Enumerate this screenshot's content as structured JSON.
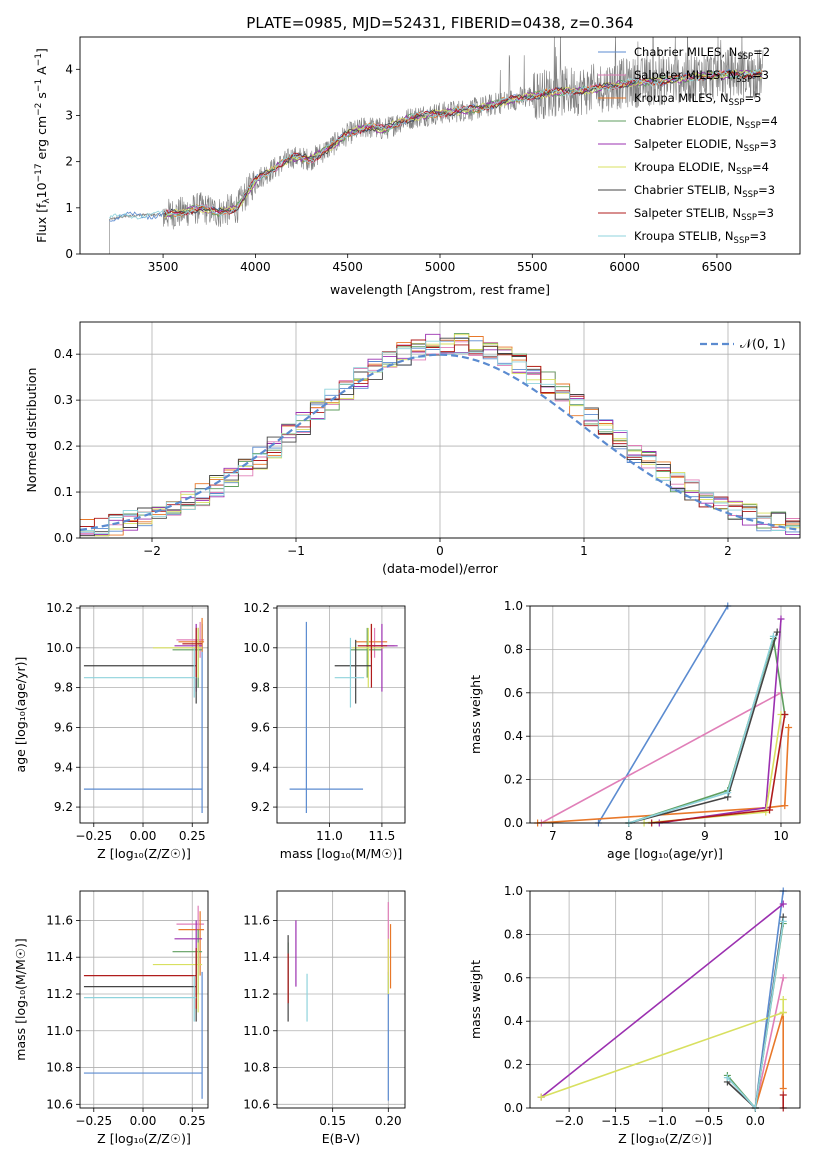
{
  "figure": {
    "title": "PLATE=0985, MJD=52431, FIBERID=0438, z=0.364"
  },
  "models": [
    {
      "key": "cm",
      "label": "Chabrier MILES, N",
      "sub": "SSP",
      "tail": "=2",
      "color": "#5b8bd0"
    },
    {
      "key": "sm",
      "label": "Salpeter MILES, N",
      "sub": "SSP",
      "tail": "=3",
      "color": "#e07fb8"
    },
    {
      "key": "km",
      "label": "Kroupa MILES, N",
      "sub": "SSP",
      "tail": "=5",
      "color": "#e8782a"
    },
    {
      "key": "ce",
      "label": "Chabrier ELODIE, N",
      "sub": "SSP",
      "tail": "=4",
      "color": "#5f9e5f"
    },
    {
      "key": "se",
      "label": "Salpeter ELODIE, N",
      "sub": "SSP",
      "tail": "=3",
      "color": "#9b30b0"
    },
    {
      "key": "ke",
      "label": "Kroupa ELODIE, N",
      "sub": "SSP",
      "tail": "=4",
      "color": "#d8e060"
    },
    {
      "key": "cs",
      "label": "Chabrier STELIB, N",
      "sub": "SSP",
      "tail": "=3",
      "color": "#444444"
    },
    {
      "key": "ss",
      "label": "Salpeter STELIB, N",
      "sub": "SSP",
      "tail": "=3",
      "color": "#b01c1c"
    },
    {
      "key": "ks",
      "label": "Kroupa STELIB, N",
      "sub": "SSP",
      "tail": "=3",
      "color": "#8fd3dc"
    }
  ],
  "colors": {
    "data": "#808080",
    "grid": "#b0b0b0",
    "normal": "#5b8bd0"
  },
  "chart_data": [
    {
      "id": "spectrum",
      "type": "line",
      "xlabel": "wavelength [Angstrom, rest frame]",
      "ylabel_main": "Flux [f",
      "ylabel_sub": "λ",
      "ylabel_rest": "10",
      "ylabel_exp1": "−17",
      "ylabel_mid": " erg cm",
      "ylabel_exp2": "−2",
      "ylabel_mid2": " s",
      "ylabel_exp3": "−1",
      "ylabel_end": " A",
      "ylabel_exp4": "−1",
      "ylabel_close": "]",
      "xlim": [
        3050,
        6950
      ],
      "ylim": [
        0,
        4.7
      ],
      "xticks": [
        "3500",
        "4000",
        "4500",
        "5000",
        "5500",
        "6000",
        "6500"
      ],
      "xtick_values": [
        3500,
        4000,
        4500,
        5000,
        5500,
        6000,
        6500
      ],
      "yticks": [
        "0",
        "1",
        "2",
        "3",
        "4"
      ],
      "ytick_values": [
        0,
        1,
        2,
        3,
        4
      ],
      "grid": false,
      "legend": "right",
      "continuum": {
        "x": [
          3210,
          3300,
          3400,
          3500,
          3600,
          3700,
          3800,
          3900,
          4000,
          4100,
          4200,
          4300,
          4400,
          4500,
          4600,
          4700,
          4800,
          4900,
          5000,
          5200,
          5400,
          5600,
          5800,
          6000,
          6200,
          6400,
          6600,
          6750
        ],
        "y": [
          0.75,
          0.82,
          0.85,
          0.85,
          0.9,
          1.0,
          0.9,
          1.0,
          1.6,
          1.85,
          2.1,
          2.05,
          2.3,
          2.6,
          2.75,
          2.7,
          2.9,
          3.0,
          3.05,
          3.15,
          3.35,
          3.5,
          3.55,
          3.7,
          3.75,
          3.85,
          3.9,
          3.9
        ]
      }
    },
    {
      "id": "residuals",
      "type": "histogram",
      "xlabel": "(data-model)/error",
      "ylabel": "Normed distribution",
      "xlim": [
        -2.5,
        2.5
      ],
      "ylim": [
        0,
        0.47
      ],
      "xticks": [
        "−2",
        "−1",
        "0",
        "1",
        "2"
      ],
      "xtick_values": [
        -2,
        -1,
        0,
        1,
        2
      ],
      "yticks": [
        "0.0",
        "0.1",
        "0.2",
        "0.3",
        "0.4"
      ],
      "ytick_values": [
        0,
        0.1,
        0.2,
        0.3,
        0.4
      ],
      "grid": true,
      "legend": "top-right",
      "legend_label": "𝒩(0, 1)"
    },
    {
      "id": "age_vs_Z",
      "type": "scatter",
      "xlabel": "Z [log₁₀(Z/Z☉)]",
      "ylabel": "age  [log₁₀(age/yr)]",
      "xlim": [
        -0.32,
        0.33
      ],
      "ylim": [
        9.12,
        10.21
      ],
      "xticks": [
        "−0.25",
        "0.00",
        "0.25"
      ],
      "xtick_values": [
        -0.25,
        0,
        0.25
      ],
      "yticks": [
        "9.2",
        "9.4",
        "9.6",
        "9.8",
        "10.0",
        "10.2"
      ],
      "ytick_values": [
        9.2,
        9.4,
        9.6,
        9.8,
        10.0,
        10.2
      ],
      "grid": true,
      "points": [
        {
          "m": "cm",
          "x": 0.3,
          "y": 9.29,
          "xlo": -0.3,
          "xhi": 0.3,
          "ylo": 9.17,
          "yhi": 10.12
        },
        {
          "m": "sm",
          "x": 0.29,
          "y": 10.04,
          "xlo": 0.17,
          "xhi": 0.31,
          "ylo": 9.95,
          "yhi": 10.13
        },
        {
          "m": "km",
          "x": 0.3,
          "y": 10.03,
          "xlo": 0.18,
          "xhi": 0.31,
          "ylo": 9.98,
          "yhi": 10.15
        },
        {
          "m": "ce",
          "x": 0.28,
          "y": 9.99,
          "xlo": 0.15,
          "xhi": 0.3,
          "ylo": 9.8,
          "yhi": 10.1
        },
        {
          "m": "se",
          "x": 0.27,
          "y": 10.01,
          "xlo": 0.16,
          "xhi": 0.3,
          "ylo": 9.78,
          "yhi": 10.12
        },
        {
          "m": "ke",
          "x": 0.28,
          "y": 10.0,
          "xlo": 0.05,
          "xhi": 0.3,
          "ylo": 9.85,
          "yhi": 10.1
        },
        {
          "m": "cs",
          "x": 0.27,
          "y": 9.91,
          "xlo": -0.3,
          "xhi": 0.27,
          "ylo": 9.72,
          "yhi": 10.04
        },
        {
          "m": "ss",
          "x": 0.27,
          "y": 10.02,
          "xlo": 0.2,
          "xhi": 0.3,
          "ylo": 9.85,
          "yhi": 10.1
        },
        {
          "m": "ks",
          "x": 0.26,
          "y": 9.85,
          "xlo": -0.3,
          "xhi": 0.27,
          "ylo": 9.75,
          "yhi": 10.0
        }
      ]
    },
    {
      "id": "age_vs_mass",
      "type": "scatter",
      "xlabel": "mass [log₁₀(M/M☉)]",
      "ylabel": "",
      "xlim": [
        10.5,
        11.72
      ],
      "ylim": [
        9.12,
        10.21
      ],
      "xticks": [
        "11.0",
        "11.5"
      ],
      "xtick_values": [
        11.0,
        11.5
      ],
      "yticks": [
        "9.2",
        "9.4",
        "9.6",
        "9.8",
        "10.0",
        "10.2"
      ],
      "ytick_values": [
        9.2,
        9.4,
        9.6,
        9.8,
        10.0,
        10.2
      ],
      "grid": true,
      "points": [
        {
          "m": "cm",
          "x": 10.78,
          "y": 9.29,
          "xlo": 10.62,
          "xhi": 11.32,
          "ylo": 9.17,
          "yhi": 10.13
        },
        {
          "m": "sm",
          "x": 11.43,
          "y": 10.01,
          "xlo": 11.27,
          "xhi": 11.62,
          "ylo": 9.95,
          "yhi": 10.1
        },
        {
          "m": "km",
          "x": 11.4,
          "y": 10.03,
          "xlo": 11.25,
          "xhi": 11.55,
          "ylo": 9.95,
          "yhi": 10.12
        },
        {
          "m": "ce",
          "x": 11.36,
          "y": 9.99,
          "xlo": 11.2,
          "xhi": 11.5,
          "ylo": 9.85,
          "yhi": 10.1
        },
        {
          "m": "se",
          "x": 11.5,
          "y": 10.01,
          "xlo": 11.35,
          "xhi": 11.65,
          "ylo": 9.78,
          "yhi": 10.12
        },
        {
          "m": "ke",
          "x": 11.37,
          "y": 10.0,
          "xlo": 11.22,
          "xhi": 11.52,
          "ylo": 9.8,
          "yhi": 10.1
        },
        {
          "m": "cs",
          "x": 11.25,
          "y": 9.91,
          "xlo": 11.05,
          "xhi": 11.4,
          "ylo": 9.72,
          "yhi": 10.04
        },
        {
          "m": "ss",
          "x": 11.4,
          "y": 10.01,
          "xlo": 11.27,
          "xhi": 11.55,
          "ylo": 9.8,
          "yhi": 10.12
        },
        {
          "m": "ks",
          "x": 11.2,
          "y": 9.85,
          "xlo": 11.05,
          "xhi": 11.33,
          "ylo": 9.7,
          "yhi": 10.05
        }
      ]
    },
    {
      "id": "mass_vs_Z",
      "type": "scatter",
      "xlabel": "Z [log₁₀(Z/Z☉)]",
      "ylabel": "mass [log₁₀(M/M☉)]",
      "xlim": [
        -0.32,
        0.33
      ],
      "ylim": [
        10.58,
        11.76
      ],
      "xticks": [
        "−0.25",
        "0.00",
        "0.25"
      ],
      "xtick_values": [
        -0.25,
        0,
        0.25
      ],
      "yticks": [
        "10.6",
        "10.8",
        "11.0",
        "11.2",
        "11.4",
        "11.6"
      ],
      "ytick_values": [
        10.6,
        10.8,
        11.0,
        11.2,
        11.4,
        11.6
      ],
      "grid": true,
      "points": [
        {
          "m": "cm",
          "x": 0.3,
          "y": 10.77,
          "xlo": -0.3,
          "xhi": 0.3,
          "ylo": 10.63,
          "yhi": 11.32
        },
        {
          "m": "sm",
          "x": 0.28,
          "y": 11.58,
          "xlo": 0.17,
          "xhi": 0.31,
          "ylo": 11.35,
          "yhi": 11.68
        },
        {
          "m": "km",
          "x": 0.29,
          "y": 11.55,
          "xlo": 0.18,
          "xhi": 0.31,
          "ylo": 11.3,
          "yhi": 11.65
        },
        {
          "m": "ce",
          "x": 0.28,
          "y": 11.43,
          "xlo": 0.15,
          "xhi": 0.3,
          "ylo": 11.2,
          "yhi": 11.55
        },
        {
          "m": "se",
          "x": 0.27,
          "y": 11.5,
          "xlo": 0.16,
          "xhi": 0.3,
          "ylo": 11.3,
          "yhi": 11.6
        },
        {
          "m": "ke",
          "x": 0.28,
          "y": 11.36,
          "xlo": 0.05,
          "xhi": 0.3,
          "ylo": 11.1,
          "yhi": 11.48
        },
        {
          "m": "cs",
          "x": 0.27,
          "y": 11.24,
          "xlo": -0.3,
          "xhi": 0.27,
          "ylo": 11.05,
          "yhi": 11.42
        },
        {
          "m": "ss",
          "x": 0.27,
          "y": 11.3,
          "xlo": -0.3,
          "xhi": 0.27,
          "ylo": 11.12,
          "yhi": 11.45
        },
        {
          "m": "ks",
          "x": 0.26,
          "y": 11.18,
          "xlo": -0.3,
          "xhi": 0.27,
          "ylo": 11.05,
          "yhi": 11.3
        }
      ]
    },
    {
      "id": "mass_vs_ebv",
      "type": "scatter",
      "xlabel": "E(B-V)",
      "ylabel": "",
      "xlim": [
        0.1,
        0.215
      ],
      "ylim": [
        10.58,
        11.76
      ],
      "xticks": [
        "0.15",
        "0.20"
      ],
      "xtick_values": [
        0.15,
        0.2
      ],
      "yticks": [
        "10.6",
        "10.8",
        "11.0",
        "11.2",
        "11.4",
        "11.6"
      ],
      "ytick_values": [
        10.6,
        10.8,
        11.0,
        11.2,
        11.4,
        11.6
      ],
      "grid": true,
      "points": [
        {
          "m": "cm",
          "x": 0.2,
          "y": 10.78,
          "xlo": 0.2,
          "xhi": 0.2,
          "ylo": 10.62,
          "yhi": 11.32
        },
        {
          "m": "sm",
          "x": 0.2,
          "y": 11.52,
          "xlo": 0.2,
          "xhi": 0.2,
          "ylo": 11.3,
          "yhi": 11.7
        },
        {
          "m": "km",
          "x": 0.202,
          "y": 11.4,
          "xlo": 0.202,
          "xhi": 0.202,
          "ylo": 11.23,
          "yhi": 11.58
        },
        {
          "m": "ce",
          "x": 0.11,
          "y": 11.33,
          "xlo": 0.11,
          "xhi": 0.11,
          "ylo": 11.15,
          "yhi": 11.48
        },
        {
          "m": "se",
          "x": 0.117,
          "y": 11.42,
          "xlo": 0.117,
          "xhi": 0.117,
          "ylo": 11.24,
          "yhi": 11.6
        },
        {
          "m": "ke",
          "x": 0.2,
          "y": 11.36,
          "xlo": 0.2,
          "xhi": 0.2,
          "ylo": 11.2,
          "yhi": 11.5
        },
        {
          "m": "cs",
          "x": 0.11,
          "y": 11.27,
          "xlo": 0.11,
          "xhi": 0.11,
          "ylo": 11.05,
          "yhi": 11.52
        },
        {
          "m": "ss",
          "x": 0.11,
          "y": 11.3,
          "xlo": 0.11,
          "xhi": 0.11,
          "ylo": 11.15,
          "yhi": 11.42
        },
        {
          "m": "ks",
          "x": 0.127,
          "y": 11.18,
          "xlo": 0.127,
          "xhi": 0.127,
          "ylo": 11.05,
          "yhi": 11.31
        }
      ]
    },
    {
      "id": "weight_vs_age",
      "type": "line",
      "xlabel": "age  [log₁₀(age/yr)]",
      "ylabel": "mass weight",
      "xlim": [
        6.7,
        10.25
      ],
      "ylim": [
        0,
        1.0
      ],
      "xticks": [
        "7",
        "8",
        "9",
        "10"
      ],
      "xtick_values": [
        7,
        8,
        9,
        10
      ],
      "yticks": [
        "0.0",
        "0.2",
        "0.4",
        "0.6",
        "0.8",
        "1.0"
      ],
      "ytick_values": [
        0,
        0.2,
        0.4,
        0.6,
        0.8,
        1.0
      ],
      "grid": true,
      "series": [
        {
          "m": "cm",
          "x": [
            7.6,
            9.3
          ],
          "y": [
            0.0,
            1.0
          ]
        },
        {
          "m": "sm",
          "x": [
            6.85,
            10.0
          ],
          "y": [
            0.0,
            0.6
          ]
        },
        {
          "m": "km",
          "x": [
            6.8,
            9.8,
            10.05,
            10.1
          ],
          "y": [
            0.0,
            0.07,
            0.08,
            0.44
          ]
        },
        {
          "m": "ce",
          "x": [
            8.0,
            9.3,
            9.9,
            10.05
          ],
          "y": [
            0.0,
            0.15,
            0.85,
            0.5
          ]
        },
        {
          "m": "se",
          "x": [
            8.4,
            9.8,
            10.0
          ],
          "y": [
            0.0,
            0.07,
            0.94
          ]
        },
        {
          "m": "ke",
          "x": [
            8.2,
            9.8,
            10.0
          ],
          "y": [
            0.0,
            0.05,
            0.5
          ]
        },
        {
          "m": "cs",
          "x": [
            8.0,
            9.3,
            9.95
          ],
          "y": [
            0.0,
            0.12,
            0.88
          ]
        },
        {
          "m": "ss",
          "x": [
            8.3,
            9.85,
            10.05
          ],
          "y": [
            0.0,
            0.06,
            0.5
          ]
        },
        {
          "m": "ks",
          "x": [
            8.0,
            9.3,
            9.9
          ],
          "y": [
            0.0,
            0.14,
            0.86
          ]
        }
      ]
    },
    {
      "id": "weight_vs_Z",
      "type": "line",
      "xlabel": "Z [log₁₀(Z/Z☉)]",
      "ylabel": "mass weight",
      "xlim": [
        -2.42,
        0.48
      ],
      "ylim": [
        0,
        1.0
      ],
      "xticks": [
        "−2.0",
        "−1.5",
        "−1.0",
        "−0.5",
        "0.0"
      ],
      "xtick_values": [
        -2,
        -1.5,
        -1,
        -0.5,
        0
      ],
      "yticks": [
        "0.0",
        "0.2",
        "0.4",
        "0.6",
        "0.8",
        "1.0"
      ],
      "ytick_values": [
        0,
        0.2,
        0.4,
        0.6,
        0.8,
        1.0
      ],
      "grid": true,
      "series": [
        {
          "m": "cm",
          "x": [
            0.0,
            0.3
          ],
          "y": [
            0.0,
            1.0
          ]
        },
        {
          "m": "sm",
          "x": [
            0.0,
            0.3
          ],
          "y": [
            0.0,
            0.6
          ]
        },
        {
          "m": "km",
          "x": [
            0.0,
            0.3,
            0.3
          ],
          "y": [
            0.0,
            0.44,
            0.09
          ]
        },
        {
          "m": "ce",
          "x": [
            -0.3,
            0.0,
            0.3
          ],
          "y": [
            0.15,
            0.0,
            0.85
          ]
        },
        {
          "m": "se",
          "x": [
            -2.3,
            0.3
          ],
          "y": [
            0.05,
            0.94
          ]
        },
        {
          "m": "ke",
          "x": [
            -2.3,
            0.3,
            0.3
          ],
          "y": [
            0.05,
            0.44,
            0.5
          ]
        },
        {
          "m": "cs",
          "x": [
            -0.3,
            0.0,
            0.3
          ],
          "y": [
            0.12,
            0.0,
            0.88
          ]
        },
        {
          "m": "ss",
          "x": [
            0.3,
            0.3
          ],
          "y": [
            0.0,
            0.06
          ]
        },
        {
          "m": "ks",
          "x": [
            -0.3,
            0.0,
            0.3
          ],
          "y": [
            0.14,
            0.0,
            0.86
          ]
        }
      ]
    }
  ]
}
